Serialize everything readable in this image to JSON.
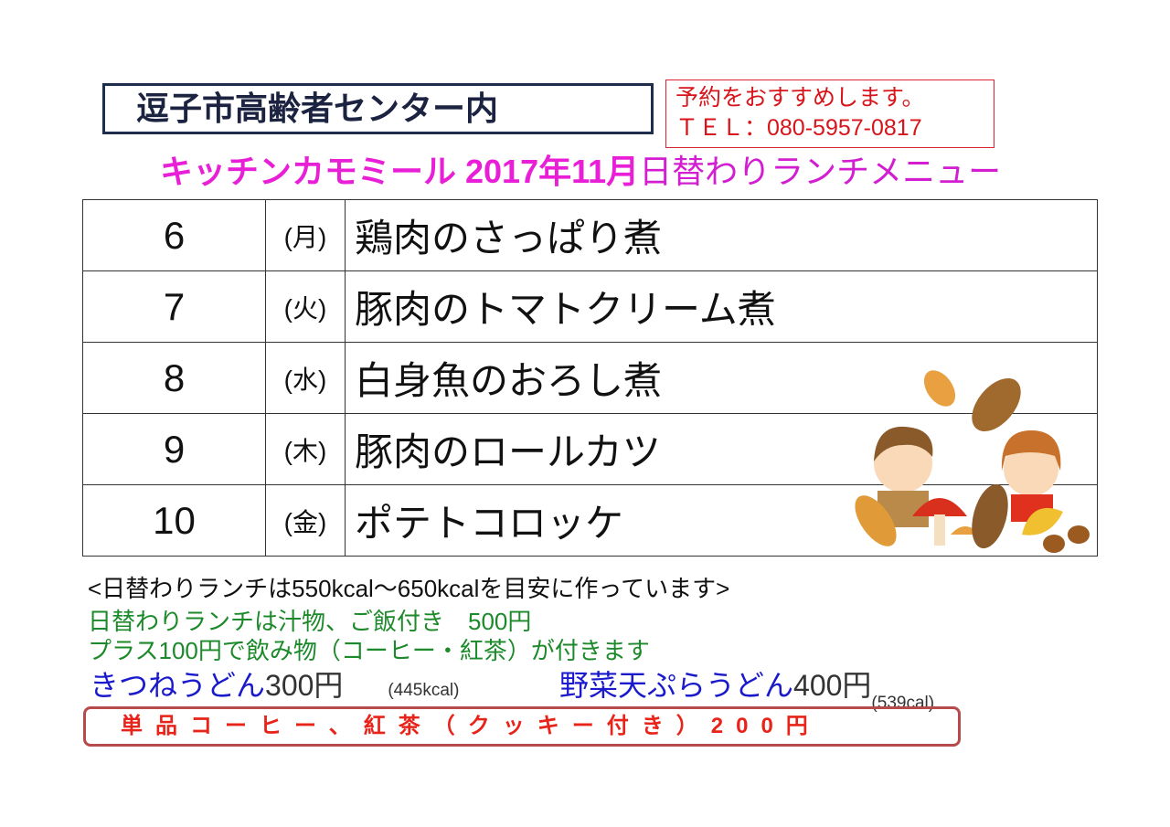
{
  "header": {
    "venue": "逗子市高齢者センター内",
    "reservation_note": "予約をおすすめします。",
    "tel": "ＴＥＬ：080-5957-0817",
    "title_shop": "キッチンカモミール 2017年11月",
    "title_menu": "日替わりランチメニュー"
  },
  "menu": [
    {
      "day": "6",
      "weekday": "(月)",
      "dish": "鶏肉のさっぱり煮"
    },
    {
      "day": "7",
      "weekday": "(火)",
      "dish": "豚肉のトマトクリーム煮"
    },
    {
      "day": "8",
      "weekday": "(水)",
      "dish": "白身魚のおろし煮"
    },
    {
      "day": "9",
      "weekday": "(木)",
      "dish": "豚肉のロールカツ"
    },
    {
      "day": "10",
      "weekday": "(金)",
      "dish": "ポテトコロッケ"
    }
  ],
  "notes": {
    "calorie": "<日替わりランチは550kcal～650kcalを目安に作っています>",
    "lunch_price": "日替わりランチは汁物、ご飯付き　500円",
    "drink_plus": "プラス100円で飲み物（コーヒー・紅茶）が付きます"
  },
  "udon": [
    {
      "name": "きつねうどん",
      "price": "300円",
      "cal": "(445kcal)"
    },
    {
      "name": "野菜天ぷらうどん",
      "price": "400円",
      "cal": "(539cal)"
    }
  ],
  "coffee": "単品コーヒー、紅茶（クッキー付き）200円",
  "illustration": "autumn-kids-leaves-mushrooms"
}
